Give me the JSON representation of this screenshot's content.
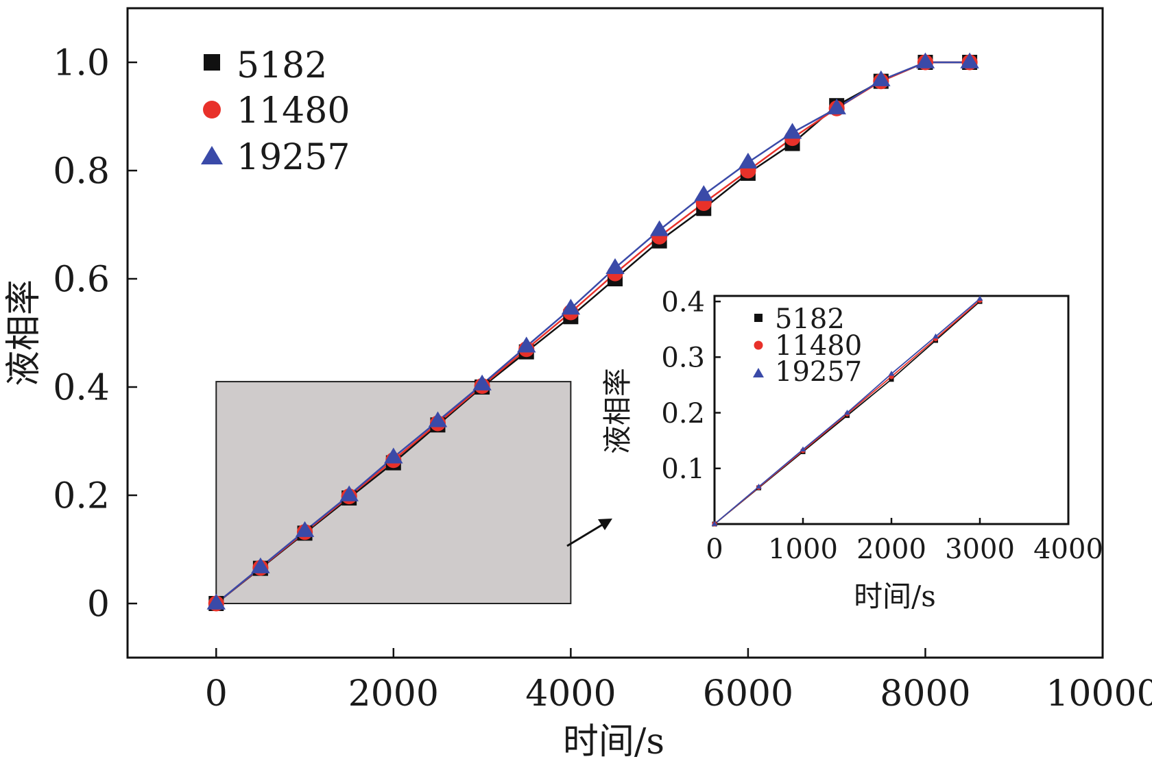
{
  "colors": {
    "s5182": "#111111",
    "s11480": "#e8312a",
    "s19257": "#3a4aa8",
    "zoom_box": "#cfcbcb"
  },
  "chart_data": [
    {
      "type": "line",
      "xlabel": "时间/s",
      "ylabel": "液相率",
      "xlim": [
        -1000,
        10000
      ],
      "ylim": [
        -0.1,
        1.1
      ],
      "xticks": [
        "0",
        "2000",
        "4000",
        "6000",
        "8000",
        "10000"
      ],
      "yticks": [
        "0",
        "0.2",
        "0.4",
        "0.6",
        "0.8",
        "1.0"
      ],
      "legend": "top-left",
      "grid": false,
      "x": [
        0,
        500,
        1000,
        1500,
        2000,
        2500,
        3000,
        3500,
        4000,
        4500,
        5000,
        5500,
        6000,
        6500,
        7000,
        7500,
        8000,
        8500
      ],
      "series": [
        {
          "name": "5182",
          "marker": "square",
          "values": [
            0,
            0.065,
            0.13,
            0.195,
            0.26,
            0.33,
            0.4,
            0.465,
            0.53,
            0.6,
            0.67,
            0.73,
            0.795,
            0.85,
            0.92,
            0.965,
            1.0,
            1.0
          ]
        },
        {
          "name": "11480",
          "marker": "circle",
          "values": [
            0,
            0.066,
            0.132,
            0.198,
            0.265,
            0.333,
            0.402,
            0.47,
            0.538,
            0.61,
            0.678,
            0.74,
            0.8,
            0.86,
            0.915,
            0.965,
            1.0,
            1.0
          ]
        },
        {
          "name": "19257",
          "marker": "triangle",
          "values": [
            0,
            0.067,
            0.134,
            0.2,
            0.27,
            0.337,
            0.405,
            0.475,
            0.545,
            0.62,
            0.69,
            0.755,
            0.815,
            0.87,
            0.915,
            0.967,
            1.0,
            1.0
          ]
        }
      ]
    },
    {
      "type": "line",
      "xlabel": "时间/s",
      "ylabel": "液相率",
      "xlim": [
        0,
        4000
      ],
      "ylim": [
        0,
        0.41
      ],
      "xticks": [
        "0",
        "1000",
        "2000",
        "3000",
        "4000"
      ],
      "yticks": [
        "0.1",
        "0.2",
        "0.3",
        "0.4"
      ],
      "legend": "top-left",
      "grid": false,
      "x": [
        0,
        500,
        1000,
        1500,
        2000,
        2500,
        3000
      ],
      "series": [
        {
          "name": "5182",
          "marker": "square",
          "values": [
            0,
            0.065,
            0.13,
            0.195,
            0.26,
            0.33,
            0.4
          ]
        },
        {
          "name": "11480",
          "marker": "circle",
          "values": [
            0,
            0.066,
            0.132,
            0.198,
            0.265,
            0.333,
            0.402
          ]
        },
        {
          "name": "19257",
          "marker": "triangle",
          "values": [
            0,
            0.067,
            0.134,
            0.2,
            0.27,
            0.337,
            0.405
          ]
        }
      ]
    }
  ]
}
